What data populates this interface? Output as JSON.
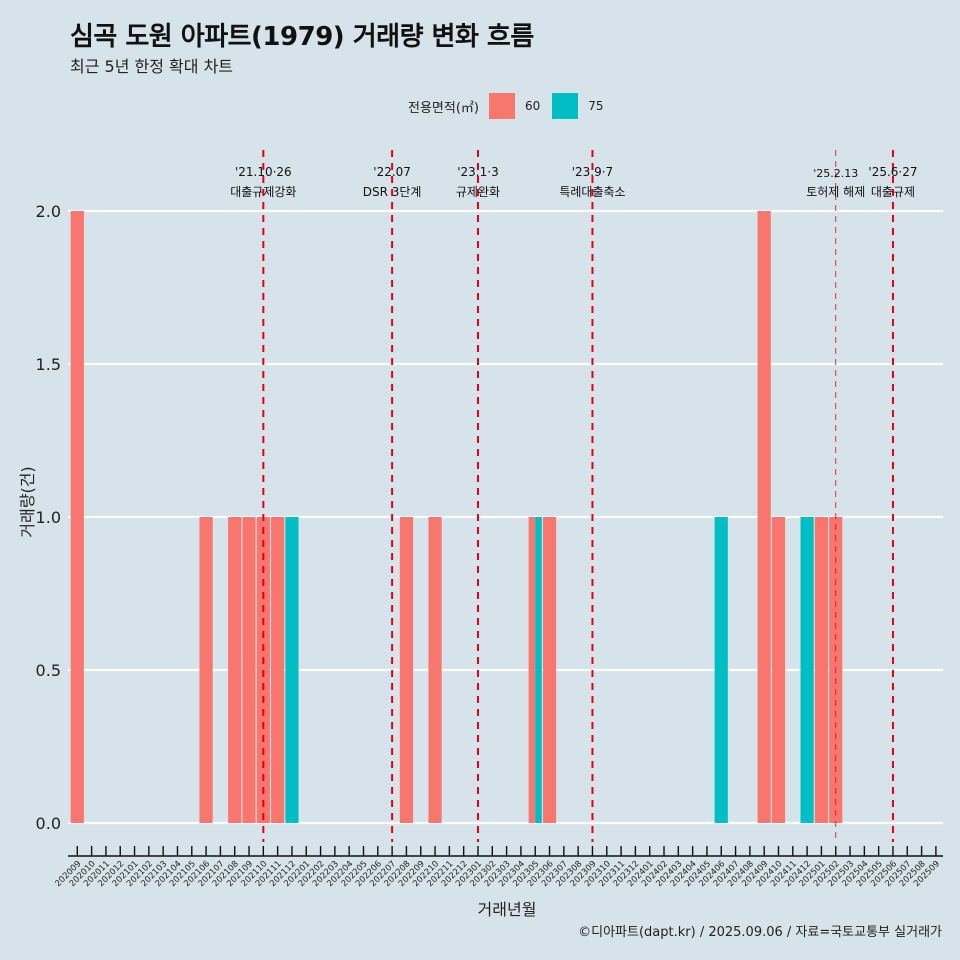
{
  "header": {
    "title": "심곡 도원 아파트(1979) 거래량 변화 흐름",
    "subtitle": "최근 5년 한정 확대 차트"
  },
  "legend": {
    "title": "전용면적(㎡)",
    "items": [
      {
        "label": "60",
        "color": "#f8766d"
      },
      {
        "label": "75",
        "color": "#00bfc4"
      }
    ]
  },
  "footer": "©디아파트(dapt.kr) / 2025.09.06 / 자료=국토교통부 실거래가",
  "chart_data": {
    "type": "bar",
    "title": "심곡 도원 아파트(1979) 거래량 변화 흐름",
    "subtitle": "최근 5년 한정 확대 차트",
    "xlabel": "거래년월",
    "ylabel": "거래량(건)",
    "ylim": [
      0,
      2
    ],
    "yticks": [
      "0.0",
      "0.5",
      "1.0",
      "1.5",
      "2.0"
    ],
    "ytick_values": [
      0,
      0.5,
      1.0,
      1.5,
      2.0
    ],
    "grid": "horizontal major",
    "legend_position": "top",
    "categories": [
      "202009",
      "202010",
      "202011",
      "202012",
      "202101",
      "202102",
      "202103",
      "202104",
      "202105",
      "202106",
      "202107",
      "202108",
      "202109",
      "202110",
      "202111",
      "202112",
      "202201",
      "202202",
      "202203",
      "202204",
      "202205",
      "202206",
      "202207",
      "202208",
      "202209",
      "202210",
      "202211",
      "202212",
      "202301",
      "202302",
      "202303",
      "202304",
      "202305",
      "202306",
      "202307",
      "202308",
      "202309",
      "202310",
      "202311",
      "202312",
      "202401",
      "202402",
      "202403",
      "202404",
      "202405",
      "202406",
      "202407",
      "202408",
      "202409",
      "202410",
      "202411",
      "202412",
      "202501",
      "202502",
      "202503",
      "202504",
      "202505",
      "202506",
      "202507",
      "202508",
      "202509"
    ],
    "series": [
      {
        "name": "60",
        "color": "#f8766d",
        "points": [
          {
            "x": "202009",
            "y": 2
          },
          {
            "x": "202106",
            "y": 1
          },
          {
            "x": "202108",
            "y": 1
          },
          {
            "x": "202109",
            "y": 1
          },
          {
            "x": "202110",
            "y": 1
          },
          {
            "x": "202111",
            "y": 1
          },
          {
            "x": "202208",
            "y": 1
          },
          {
            "x": "202210",
            "y": 1
          },
          {
            "x": "202305",
            "y": 1
          },
          {
            "x": "202306",
            "y": 1
          },
          {
            "x": "202409",
            "y": 2
          },
          {
            "x": "202410",
            "y": 1
          },
          {
            "x": "202501",
            "y": 1
          },
          {
            "x": "202502",
            "y": 1
          }
        ]
      },
      {
        "name": "75",
        "color": "#00bfc4",
        "points": [
          {
            "x": "202112",
            "y": 1
          },
          {
            "x": "202305",
            "y": 1
          },
          {
            "x": "202406",
            "y": 1
          },
          {
            "x": "202412",
            "y": 1
          }
        ]
      }
    ],
    "annotations": [
      {
        "x": "202110",
        "date": "'21.10·26",
        "label": "대출규제강화",
        "style": "bold"
      },
      {
        "x": "202207",
        "date": "'22.07",
        "label": "DSR 3단계",
        "style": "bold"
      },
      {
        "x": "202301",
        "date": "'23.1·3",
        "label": "규제완화",
        "style": "bold"
      },
      {
        "x": "202309",
        "date": "'23.9·7",
        "label": "특례대출축소",
        "style": "bold"
      },
      {
        "x": "202502",
        "date": "'25.2.13",
        "label": "토허제 해제",
        "style": "thin"
      },
      {
        "x": "202506",
        "date": "'25.6·27",
        "label": "대출규제",
        "style": "bold"
      }
    ],
    "annotation_color": "#e8000b"
  }
}
